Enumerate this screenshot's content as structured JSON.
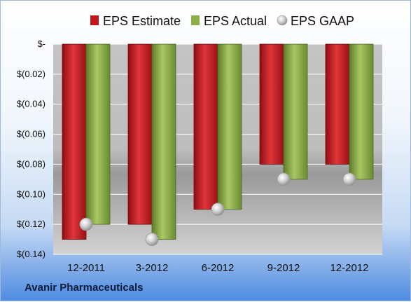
{
  "footer": {
    "company": "Avanir Pharmaceuticals"
  },
  "colors": {
    "estimate": "#c0161c",
    "actual": "#8cad47",
    "gaap": "#c9c9c9"
  },
  "chart_data": {
    "type": "bar",
    "categories": [
      "12-2011",
      "3-2012",
      "6-2012",
      "9-2012",
      "12-2012"
    ],
    "series": [
      {
        "name": "EPS Estimate",
        "values": [
          -0.13,
          -0.12,
          -0.11,
          -0.08,
          -0.08
        ]
      },
      {
        "name": "EPS Actual",
        "values": [
          -0.12,
          -0.13,
          -0.11,
          -0.09,
          -0.09
        ]
      },
      {
        "name": "EPS GAAP",
        "values": [
          -0.12,
          -0.13,
          -0.11,
          -0.09,
          -0.09
        ],
        "marker": "sphere"
      }
    ],
    "ylim": [
      -0.14,
      0
    ],
    "yticks": [
      0,
      -0.02,
      -0.04,
      -0.06,
      -0.08,
      -0.1,
      -0.12,
      -0.14
    ],
    "ytick_labels": [
      "$-",
      "$(0.02)",
      "$(0.04)",
      "$(0.06)",
      "$(0.08)",
      "$(0.10)",
      "$(0.12)",
      "$(0.14)"
    ],
    "legend": "top",
    "grid": "horizontal"
  }
}
